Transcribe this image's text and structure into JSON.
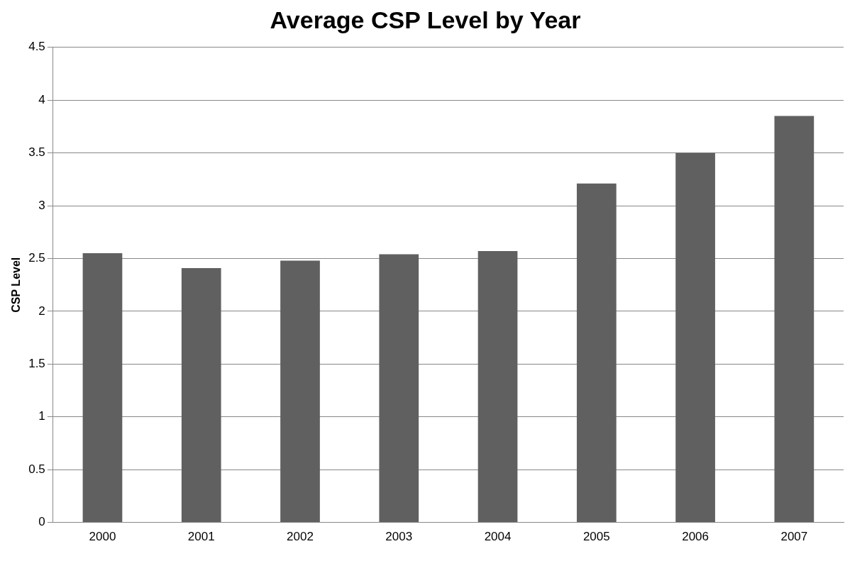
{
  "chart_data": {
    "type": "bar",
    "title": "Average CSP Level by Year",
    "ylabel": "CSP Level",
    "categories": [
      "2000",
      "2001",
      "2002",
      "2003",
      "2004",
      "2005",
      "2006",
      "2007"
    ],
    "values": [
      2.55,
      2.41,
      2.48,
      2.54,
      2.57,
      3.21,
      3.5,
      3.85
    ],
    "color": "#606060",
    "ylim": [
      0,
      4.5
    ],
    "yticks": [
      0,
      0.5,
      1,
      1.5,
      2,
      2.5,
      3,
      3.5,
      4,
      4.5
    ],
    "grid": "y",
    "legend": false
  }
}
